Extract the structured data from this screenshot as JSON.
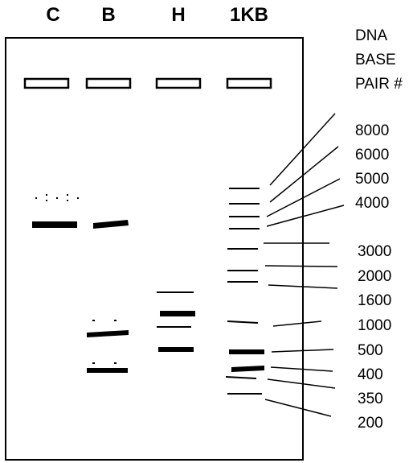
{
  "lanes": [
    {
      "id": "C",
      "label": "C"
    },
    {
      "id": "B",
      "label": "B"
    },
    {
      "id": "H",
      "label": "H"
    },
    {
      "id": "1KB",
      "label": "1KB"
    }
  ],
  "header": {
    "line1": "DNA",
    "line2": "BASE",
    "line3": "PAIR #"
  },
  "bp_labels": [
    "8000",
    "6000",
    "5000",
    "4000",
    "3000",
    "2000",
    "1600",
    "1000",
    "500",
    "400",
    "350",
    "200"
  ],
  "colors": {
    "ink": "#000000",
    "background": "#ffffff"
  }
}
